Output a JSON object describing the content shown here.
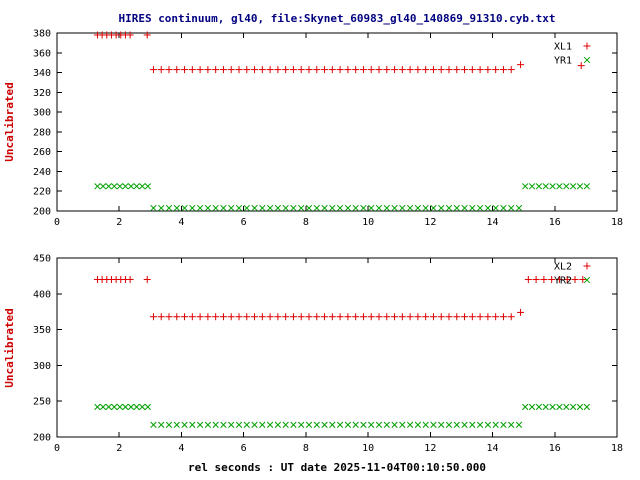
{
  "title": "HIRES continuum, gl40, file:Skynet_60983_gl40_140869_91310.cyb.txt",
  "xlabel": "rel seconds : UT date 2025-11-04T00:10:50.000",
  "colors": {
    "title": "#000080",
    "axis": "#000000",
    "ylabel": "#cc0000",
    "series_red": "#dd0000",
    "series_green": "#00a000",
    "background": "#ffffff"
  },
  "chart_data": [
    {
      "type": "scatter",
      "ylabel": "Uncalibrated",
      "xlim": [
        0,
        18
      ],
      "ylim": [
        200,
        380
      ],
      "xticks": [
        0,
        2,
        4,
        6,
        8,
        10,
        12,
        14,
        16,
        18
      ],
      "yticks": [
        200,
        220,
        240,
        260,
        280,
        300,
        320,
        340,
        360,
        380
      ],
      "grid": false,
      "legend_position": "top-right",
      "series": [
        {
          "name": "XL1",
          "marker": "plus",
          "color": "#dd0000",
          "segments": [
            {
              "y": 378,
              "x": [
                1.3,
                1.45,
                1.6,
                1.75,
                1.9,
                2.05,
                2.2,
                2.35,
                2.9
              ]
            },
            {
              "y": 343,
              "x": [
                3.1,
                3.35,
                3.6,
                3.85,
                4.1,
                4.35,
                4.6,
                4.85,
                5.1,
                5.35,
                5.6,
                5.85,
                6.1,
                6.35,
                6.6,
                6.85,
                7.1,
                7.35,
                7.6,
                7.85,
                8.1,
                8.35,
                8.6,
                8.85,
                9.1,
                9.35,
                9.6,
                9.85,
                10.1,
                10.35,
                10.6,
                10.85,
                11.1,
                11.35,
                11.6,
                11.85,
                12.1,
                12.35,
                12.6,
                12.85,
                13.1,
                13.35,
                13.6,
                13.85,
                14.1,
                14.35,
                14.6
              ]
            },
            {
              "y": 348,
              "x": [
                14.9
              ]
            },
            {
              "y": 347,
              "x": [
                16.85
              ]
            }
          ]
        },
        {
          "name": "YR1",
          "marker": "cross",
          "color": "#00a000",
          "segments": [
            {
              "y": 225,
              "x": [
                1.3,
                1.48,
                1.66,
                1.84,
                2.02,
                2.2,
                2.38,
                2.56,
                2.74,
                2.92
              ]
            },
            {
              "y": 203,
              "x": [
                3.1,
                3.35,
                3.6,
                3.85,
                4.1,
                4.35,
                4.6,
                4.85,
                5.1,
                5.35,
                5.6,
                5.85,
                6.1,
                6.35,
                6.6,
                6.85,
                7.1,
                7.35,
                7.6,
                7.85,
                8.1,
                8.35,
                8.6,
                8.85,
                9.1,
                9.35,
                9.6,
                9.85,
                10.1,
                10.35,
                10.6,
                10.85,
                11.1,
                11.35,
                11.6,
                11.85,
                12.1,
                12.35,
                12.6,
                12.85,
                13.1,
                13.35,
                13.6,
                13.85,
                14.1,
                14.35,
                14.6,
                14.85
              ]
            },
            {
              "y": 225,
              "x": [
                15.05,
                15.27,
                15.49,
                15.71,
                15.93,
                16.15,
                16.37,
                16.59,
                16.81,
                17.03
              ]
            }
          ]
        }
      ]
    },
    {
      "type": "scatter",
      "ylabel": "Uncalibrated",
      "xlim": [
        0,
        18
      ],
      "ylim": [
        200,
        450
      ],
      "xticks": [
        0,
        2,
        4,
        6,
        8,
        10,
        12,
        14,
        16,
        18
      ],
      "yticks": [
        200,
        250,
        300,
        350,
        400,
        450
      ],
      "grid": false,
      "legend_position": "top-right",
      "series": [
        {
          "name": "XL2",
          "marker": "plus",
          "color": "#dd0000",
          "segments": [
            {
              "y": 420,
              "x": [
                1.3,
                1.45,
                1.6,
                1.75,
                1.9,
                2.05,
                2.2,
                2.35,
                2.9
              ]
            },
            {
              "y": 368,
              "x": [
                3.1,
                3.35,
                3.6,
                3.85,
                4.1,
                4.35,
                4.6,
                4.85,
                5.1,
                5.35,
                5.6,
                5.85,
                6.1,
                6.35,
                6.6,
                6.85,
                7.1,
                7.35,
                7.6,
                7.85,
                8.1,
                8.35,
                8.6,
                8.85,
                9.1,
                9.35,
                9.6,
                9.85,
                10.1,
                10.35,
                10.6,
                10.85,
                11.1,
                11.35,
                11.6,
                11.85,
                12.1,
                12.35,
                12.6,
                12.85,
                13.1,
                13.35,
                13.6,
                13.85,
                14.1,
                14.35,
                14.6
              ]
            },
            {
              "y": 374,
              "x": [
                14.9
              ]
            },
            {
              "y": 420,
              "x": [
                15.15,
                15.4,
                15.65,
                15.9,
                16.15,
                16.4,
                16.65,
                16.9
              ]
            }
          ]
        },
        {
          "name": "YR2",
          "marker": "cross",
          "color": "#00a000",
          "segments": [
            {
              "y": 242,
              "x": [
                1.3,
                1.48,
                1.66,
                1.84,
                2.02,
                2.2,
                2.38,
                2.56,
                2.74,
                2.92
              ]
            },
            {
              "y": 217,
              "x": [
                3.1,
                3.35,
                3.6,
                3.85,
                4.1,
                4.35,
                4.6,
                4.85,
                5.1,
                5.35,
                5.6,
                5.85,
                6.1,
                6.35,
                6.6,
                6.85,
                7.1,
                7.35,
                7.6,
                7.85,
                8.1,
                8.35,
                8.6,
                8.85,
                9.1,
                9.35,
                9.6,
                9.85,
                10.1,
                10.35,
                10.6,
                10.85,
                11.1,
                11.35,
                11.6,
                11.85,
                12.1,
                12.35,
                12.6,
                12.85,
                13.1,
                13.35,
                13.6,
                13.85,
                14.1,
                14.35,
                14.6,
                14.85
              ]
            },
            {
              "y": 242,
              "x": [
                15.05,
                15.27,
                15.49,
                15.71,
                15.93,
                16.15,
                16.37,
                16.59,
                16.81,
                17.03
              ]
            }
          ]
        }
      ]
    }
  ]
}
